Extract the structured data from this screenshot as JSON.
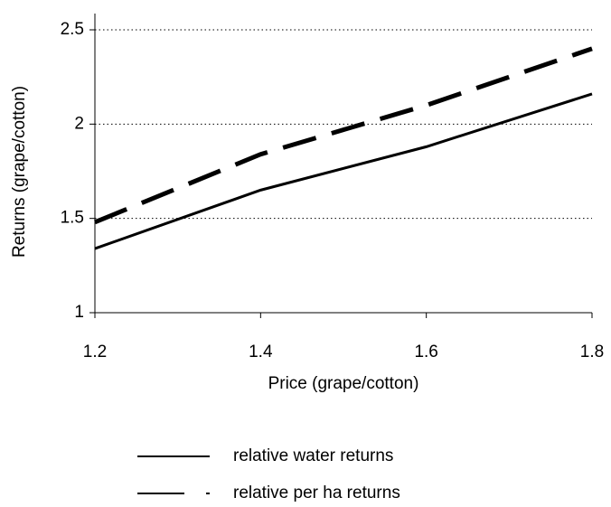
{
  "chart_data": {
    "type": "line",
    "x_label": "Price (grape/cotton)",
    "y_label": "Returns (grape/cotton)",
    "x": [
      1.2,
      1.4,
      1.6,
      1.8
    ],
    "series": [
      {
        "name": "relative water returns",
        "color": "#000000",
        "line_style": "solid",
        "values": [
          1.34,
          1.65,
          1.88,
          2.16
        ]
      },
      {
        "name": "relative per ha returns",
        "color": "#000000",
        "line_style": "dashed",
        "values": [
          1.48,
          1.84,
          2.1,
          2.4
        ]
      }
    ],
    "xlim": [
      1.2,
      1.8
    ],
    "xticks": [
      1.2,
      1.4,
      1.6,
      1.8
    ],
    "ylim": [
      1,
      2.5
    ],
    "yticks": [
      1,
      1.5,
      2,
      2.5
    ],
    "grid": true,
    "legend": "bottom"
  }
}
